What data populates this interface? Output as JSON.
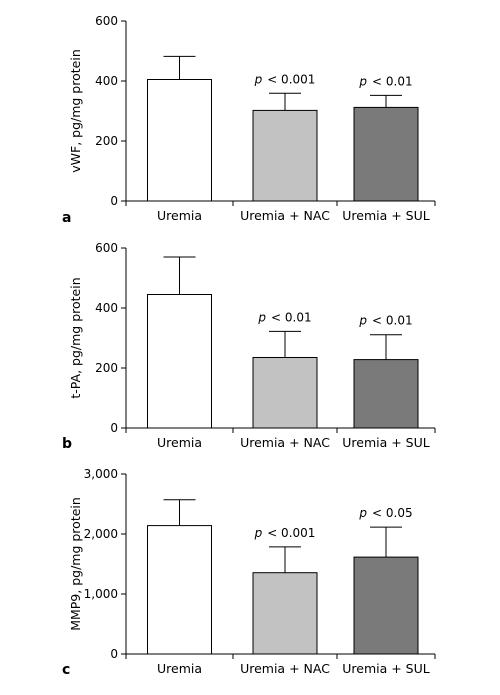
{
  "chart_data": [
    {
      "type": "bar",
      "panel_label": "a",
      "ylabel": "vWF, pg/mg protein",
      "ylim": [
        0,
        600
      ],
      "yticks": [
        0,
        200,
        400,
        600
      ],
      "ytick_labels": [
        "0",
        "200",
        "400",
        "600"
      ],
      "categories": [
        "Uremia",
        "Uremia + NAC",
        "Uremia + SUL"
      ],
      "values": [
        405,
        302,
        312
      ],
      "errors": [
        77,
        57,
        40
      ],
      "colors": [
        "#ffffff",
        "#c2c2c2",
        "#7a7a7a"
      ],
      "annotations": [
        "",
        "< 0.001",
        "< 0.01"
      ],
      "annotation_prefix": "p",
      "grid": false
    },
    {
      "type": "bar",
      "panel_label": "b",
      "ylabel": "t-PA, pg/mg protein",
      "ylim": [
        0,
        600
      ],
      "yticks": [
        0,
        200,
        400,
        600
      ],
      "ytick_labels": [
        "0",
        "200",
        "400",
        "600"
      ],
      "categories": [
        "Uremia",
        "Uremia + NAC",
        "Uremia + SUL"
      ],
      "values": [
        445,
        235,
        228
      ],
      "errors": [
        125,
        87,
        83
      ],
      "colors": [
        "#ffffff",
        "#c2c2c2",
        "#7a7a7a"
      ],
      "annotations": [
        "",
        "< 0.01",
        "< 0.01"
      ],
      "annotation_prefix": "p",
      "grid": false
    },
    {
      "type": "bar",
      "panel_label": "c",
      "ylabel": "MMP9, pg/mg protein",
      "ylim": [
        0,
        3000
      ],
      "yticks": [
        0,
        1000,
        2000,
        3000
      ],
      "ytick_labels": [
        "0",
        "1,000",
        "2,000",
        "3,000"
      ],
      "categories": [
        "Uremia",
        "Uremia + NAC",
        "Uremia + SUL"
      ],
      "values": [
        2140,
        1355,
        1615
      ],
      "errors": [
        430,
        430,
        500
      ],
      "colors": [
        "#ffffff",
        "#c2c2c2",
        "#7a7a7a"
      ],
      "annotations": [
        "",
        "< 0.001",
        "< 0.05"
      ],
      "annotation_prefix": "p",
      "grid": false
    }
  ]
}
